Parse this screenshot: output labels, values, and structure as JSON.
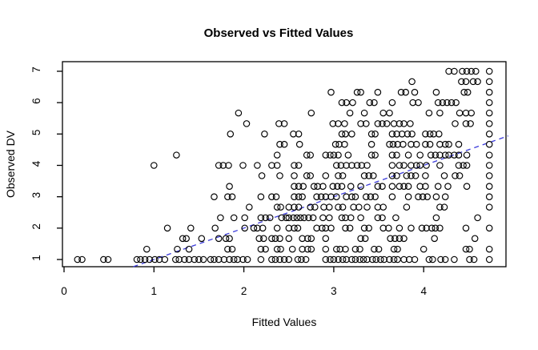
{
  "chart_data": {
    "type": "scatter",
    "title": "Observed vs Fitted Values",
    "xlabel": "Fitted Values",
    "ylabel": "Observed DV",
    "x_ticks": [
      0,
      1,
      2,
      3,
      4
    ],
    "y_ticks": [
      1,
      2,
      3,
      4,
      5,
      6,
      7
    ],
    "xlim": [
      -0.05,
      4.95
    ],
    "ylim": [
      0.77,
      7.3
    ],
    "grid": false,
    "legend": "none",
    "point_style": {
      "shape": "open-circle",
      "color": "#000000"
    },
    "reference_line": {
      "name": "identity-line y=x",
      "style": "dashed",
      "color": "#3b3bdb",
      "x1": 0.77,
      "y1": 0.77,
      "x2": 4.94,
      "y2": 4.94
    },
    "series": [
      {
        "dv": 7.0,
        "fitted": [
          4.28,
          4.34,
          4.43,
          4.48,
          4.53,
          4.58,
          4.73
        ]
      },
      {
        "dv": 6.67,
        "fitted": [
          3.87,
          4.42,
          4.47,
          4.55,
          4.6,
          4.73
        ]
      },
      {
        "dv": 6.33,
        "fitted": [
          2.97,
          3.26,
          3.3,
          3.49,
          3.75,
          3.8,
          3.9,
          4.14,
          4.45,
          4.49,
          4.73
        ]
      },
      {
        "dv": 6.0,
        "fitted": [
          3.09,
          3.14,
          3.21,
          3.4,
          3.45,
          3.65,
          3.88,
          3.94,
          4.16,
          4.21,
          4.26,
          4.31,
          4.36,
          4.73
        ]
      },
      {
        "dv": 5.67,
        "fitted": [
          1.94,
          2.75,
          3.18,
          3.34,
          3.55,
          3.62,
          4.06,
          4.18,
          4.4,
          4.47,
          4.53,
          4.73
        ]
      },
      {
        "dv": 5.33,
        "fitted": [
          2.03,
          2.39,
          2.45,
          2.99,
          3.05,
          3.12,
          3.3,
          3.36,
          3.49,
          3.54,
          3.59,
          3.67,
          3.73,
          3.78,
          3.85,
          4.35,
          4.47,
          4.52,
          4.73
        ]
      },
      {
        "dv": 5.0,
        "fitted": [
          1.85,
          2.23,
          2.55,
          2.61,
          3.09,
          3.13,
          3.2,
          3.42,
          3.46,
          3.65,
          3.7,
          3.76,
          3.82,
          3.87,
          4.02,
          4.07,
          4.11,
          4.17,
          4.73
        ]
      },
      {
        "dv": 4.67,
        "fitted": [
          2.4,
          2.45,
          2.62,
          3.02,
          3.06,
          3.12,
          3.42,
          3.62,
          3.66,
          3.71,
          3.77,
          3.86,
          3.92,
          4.02,
          4.07,
          4.18,
          4.24,
          4.28,
          4.39,
          4.73
        ]
      },
      {
        "dv": 4.33,
        "fitted": [
          1.25,
          2.37,
          2.7,
          2.74,
          2.91,
          2.96,
          3.0,
          3.05,
          3.16,
          3.42,
          3.46,
          3.65,
          3.7,
          3.83,
          3.96,
          4.08,
          4.13,
          4.18,
          4.24,
          4.28,
          4.34,
          4.39,
          4.48,
          4.73
        ]
      },
      {
        "dv": 4.0,
        "fitted": [
          1.0,
          1.72,
          1.77,
          1.83,
          1.99,
          2.15,
          2.31,
          2.37,
          2.56,
          2.61,
          3.03,
          3.08,
          3.14,
          3.2,
          3.26,
          3.31,
          3.37,
          3.65,
          3.73,
          3.78,
          3.86,
          3.92,
          3.96,
          4.03,
          4.18,
          4.39,
          4.44,
          4.48,
          4.73
        ]
      },
      {
        "dv": 3.67,
        "fitted": [
          2.2,
          2.4,
          2.56,
          2.7,
          2.74,
          2.91,
          3.05,
          3.1,
          3.34,
          3.39,
          3.44,
          3.65,
          3.7,
          3.81,
          3.86,
          3.91,
          4.02,
          4.23,
          4.35,
          4.4,
          4.73
        ]
      },
      {
        "dv": 3.33,
        "fitted": [
          1.84,
          2.56,
          2.61,
          2.66,
          2.78,
          2.82,
          2.88,
          2.99,
          3.04,
          3.09,
          3.19,
          3.3,
          3.49,
          3.54,
          3.65,
          3.73,
          3.78,
          3.83,
          3.96,
          4.02,
          4.16,
          4.27,
          4.48,
          4.73
        ]
      },
      {
        "dv": 3.0,
        "fitted": [
          1.67,
          1.82,
          1.87,
          2.19,
          2.31,
          2.36,
          2.56,
          2.61,
          2.65,
          2.81,
          2.86,
          2.91,
          2.97,
          3.03,
          3.14,
          3.2,
          3.24,
          3.36,
          3.41,
          3.46,
          3.65,
          3.83,
          3.94,
          3.99,
          4.04,
          4.14,
          4.24,
          4.73
        ]
      },
      {
        "dv": 2.67,
        "fitted": [
          2.06,
          2.37,
          2.41,
          2.5,
          2.56,
          2.61,
          2.74,
          2.79,
          2.89,
          2.95,
          3.05,
          3.1,
          3.22,
          3.28,
          3.37,
          3.49,
          3.55,
          3.81,
          4.18,
          4.23,
          4.73
        ]
      },
      {
        "dv": 2.33,
        "fitted": [
          1.74,
          1.89,
          2.01,
          2.19,
          2.24,
          2.29,
          2.42,
          2.47,
          2.5,
          2.55,
          2.59,
          2.63,
          2.67,
          2.72,
          2.77,
          2.88,
          2.95,
          3.09,
          3.13,
          3.19,
          3.3,
          3.49,
          3.54,
          3.69,
          4.14,
          4.6
        ]
      },
      {
        "dv": 2.0,
        "fitted": [
          1.15,
          1.41,
          1.68,
          2.01,
          2.11,
          2.15,
          2.21,
          2.37,
          2.5,
          2.56,
          2.6,
          2.81,
          2.87,
          2.91,
          2.97,
          3.13,
          3.18,
          3.34,
          3.39,
          3.55,
          3.61,
          3.73,
          3.86,
          3.98,
          4.03,
          4.09,
          4.13,
          4.18,
          4.47,
          4.73
        ]
      },
      {
        "dv": 1.67,
        "fitted": [
          1.32,
          1.36,
          1.53,
          1.72,
          1.8,
          1.84,
          2.17,
          2.22,
          2.31,
          2.35,
          2.4,
          2.5,
          2.65,
          2.71,
          2.75,
          2.91,
          3.3,
          3.35,
          3.63,
          3.68,
          3.73,
          3.78,
          4.12,
          4.57
        ]
      },
      {
        "dv": 1.33,
        "fitted": [
          0.92,
          1.26,
          1.39,
          1.82,
          1.87,
          2.19,
          2.24,
          2.37,
          2.41,
          2.54,
          2.65,
          2.71,
          2.75,
          2.91,
          3.03,
          3.07,
          3.13,
          3.24,
          3.29,
          3.45,
          3.5,
          3.67,
          3.71,
          4.0,
          4.47,
          4.51,
          4.73
        ]
      },
      {
        "dv": 1.0,
        "fitted": [
          0.15,
          0.2,
          0.44,
          0.49,
          0.81,
          0.85,
          0.9,
          0.95,
          1.01,
          1.06,
          1.12,
          1.24,
          1.28,
          1.34,
          1.39,
          1.45,
          1.5,
          1.55,
          1.63,
          1.67,
          1.72,
          1.78,
          1.84,
          1.89,
          1.93,
          1.99,
          2.04,
          2.19,
          2.31,
          2.35,
          2.4,
          2.45,
          2.5,
          2.6,
          2.64,
          2.69,
          2.91,
          2.96,
          3.0,
          3.05,
          3.1,
          3.14,
          3.2,
          3.24,
          3.29,
          3.33,
          3.37,
          3.43,
          3.47,
          3.52,
          3.56,
          3.62,
          3.67,
          3.71,
          3.78,
          3.84,
          3.9,
          4.06,
          4.1,
          4.19,
          4.24,
          4.34,
          4.51,
          4.56,
          4.73
        ]
      }
    ],
    "colors": {
      "background": "#ffffff",
      "frame": "#000000",
      "points": "#000000",
      "reference_line": "#3b3bdb"
    }
  }
}
